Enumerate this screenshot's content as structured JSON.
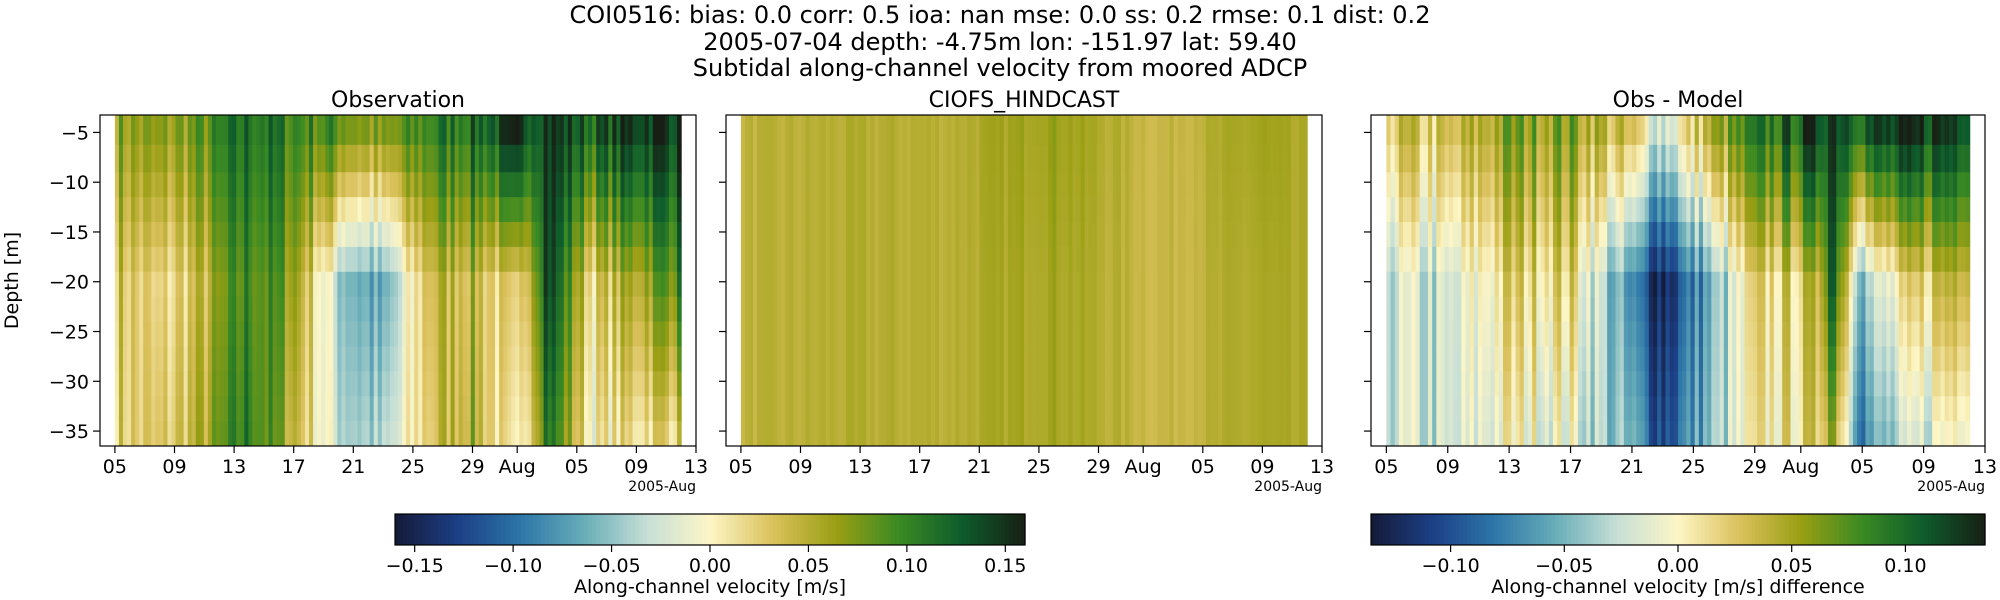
{
  "suptitle": {
    "line1": "COI0516: bias: 0.0  corr: 0.5  ioa: nan  mse: 0.0  ss: 0.2  rmse: 0.1  dist: 0.2",
    "line2": "2005-07-04 depth: -4.75m lon: -151.97 lat: 59.40",
    "line3": "Subtidal along-channel velocity from moored ADCP"
  },
  "colors": {
    "colormap_velocity": [
      "#141a36",
      "#1c3f86",
      "#2d76a8",
      "#68adb8",
      "#c6dfd6",
      "#fdf6c6",
      "#dbc15c",
      "#9a9f14",
      "#3a8a23",
      "#0e5c2c",
      "#171f14"
    ],
    "colormap_difference": [
      "#141a36",
      "#1c3f86",
      "#2d76a8",
      "#68adb8",
      "#c6dfd6",
      "#fdf6c6",
      "#dbc15c",
      "#9a9f14",
      "#3a8a23",
      "#0e5c2c",
      "#171f14"
    ]
  },
  "chart_data": [
    {
      "type": "heatmap",
      "title": "Observation",
      "xlabel": "",
      "ylabel": "Depth [m]",
      "x_ticks": [
        "05",
        "09",
        "13",
        "17",
        "21",
        "25",
        "29",
        "Aug",
        "05",
        "09",
        "13"
      ],
      "x_offset_label": "2005-Aug",
      "x_range_days": [
        "2005-07-04",
        "2005-08-13"
      ],
      "data_x_range_days": [
        "2005-07-05",
        "2005-08-12"
      ],
      "y_ticks": [
        -5,
        -10,
        -15,
        -20,
        -25,
        -30,
        -35
      ],
      "ylim": [
        -36.5,
        -3.25
      ],
      "depth_levels": [
        -4.75,
        -7.75,
        -10.25,
        -12.75,
        -15.25,
        -17.75,
        -20.25,
        -22.75,
        -25.25,
        -27.75,
        -30.25,
        -32.75,
        -35.25
      ],
      "colorbar": "shared",
      "vmin": -0.16,
      "vmax": 0.16,
      "field_description": "Observed subtidal along-channel velocity; mostly positive (0.02-0.15 m/s) with a negative band (-0.08 to -0.04) around Jul 19-25 below 8 m and a strong positive near-surface layer late in the record",
      "columns": [
        {
          "date": "2005-07-05",
          "surface": 0.07,
          "mid": 0.04,
          "bottom": 0.03
        },
        {
          "date": "2005-07-08",
          "surface": 0.06,
          "mid": 0.01,
          "bottom": 0.02
        },
        {
          "date": "2005-07-11",
          "surface": 0.08,
          "mid": 0.04,
          "bottom": 0.05
        },
        {
          "date": "2005-07-14",
          "surface": 0.12,
          "mid": 0.1,
          "bottom": 0.11
        },
        {
          "date": "2005-07-17",
          "surface": 0.1,
          "mid": 0.07,
          "bottom": 0.05
        },
        {
          "date": "2005-07-20",
          "surface": 0.09,
          "mid": -0.04,
          "bottom": -0.03
        },
        {
          "date": "2005-07-23",
          "surface": 0.06,
          "mid": -0.08,
          "bottom": -0.05
        },
        {
          "date": "2005-07-26",
          "surface": 0.1,
          "mid": 0.04,
          "bottom": 0.03
        },
        {
          "date": "2005-07-29",
          "surface": 0.12,
          "mid": 0.05,
          "bottom": 0.06
        },
        {
          "date": "2005-08-01",
          "surface": 0.14,
          "mid": 0.0,
          "bottom": -0.02
        },
        {
          "date": "2005-08-03",
          "surface": 0.15,
          "mid": 0.15,
          "bottom": 0.12
        },
        {
          "date": "2005-08-06",
          "surface": 0.12,
          "mid": 0.02,
          "bottom": 0.0
        },
        {
          "date": "2005-08-09",
          "surface": 0.15,
          "mid": 0.06,
          "bottom": 0.02
        },
        {
          "date": "2005-08-12",
          "surface": 0.15,
          "mid": 0.1,
          "bottom": 0.03
        }
      ]
    },
    {
      "type": "heatmap",
      "title": "CIOFS_HINDCAST",
      "xlabel": "",
      "ylabel": "",
      "x_ticks": [
        "05",
        "09",
        "13",
        "17",
        "21",
        "25",
        "29",
        "Aug",
        "05",
        "09",
        "13"
      ],
      "x_offset_label": "2005-Aug",
      "x_range_days": [
        "2005-07-04",
        "2005-08-13"
      ],
      "data_x_range_days": [
        "2005-07-05",
        "2005-08-12"
      ],
      "y_ticks": [
        -5,
        -10,
        -15,
        -20,
        -25,
        -30,
        -35
      ],
      "ylim": [
        -36.5,
        -3.25
      ],
      "colorbar": "shared",
      "vmin": -0.16,
      "vmax": 0.16,
      "field_description": "Model along-channel velocity; nearly depth-uniform, weakly positive (about 0.03-0.07 m/s) with faint tidal striping",
      "columns": [
        {
          "date": "2005-07-05",
          "surface": 0.045,
          "mid": 0.045,
          "bottom": 0.045
        },
        {
          "date": "2005-07-12",
          "surface": 0.05,
          "mid": 0.05,
          "bottom": 0.05
        },
        {
          "date": "2005-07-19",
          "surface": 0.05,
          "mid": 0.05,
          "bottom": 0.05
        },
        {
          "date": "2005-07-26",
          "surface": 0.065,
          "mid": 0.06,
          "bottom": 0.06
        },
        {
          "date": "2005-08-02",
          "surface": 0.04,
          "mid": 0.04,
          "bottom": 0.04
        },
        {
          "date": "2005-08-09",
          "surface": 0.06,
          "mid": 0.055,
          "bottom": 0.055
        },
        {
          "date": "2005-08-12",
          "surface": 0.05,
          "mid": 0.05,
          "bottom": 0.05
        }
      ]
    },
    {
      "type": "heatmap",
      "title": "Obs - Model",
      "xlabel": "",
      "ylabel": "",
      "x_ticks": [
        "05",
        "09",
        "13",
        "17",
        "21",
        "25",
        "29",
        "Aug",
        "05",
        "09",
        "13"
      ],
      "x_offset_label": "2005-Aug",
      "x_range_days": [
        "2005-07-04",
        "2005-08-13"
      ],
      "data_x_range_days": [
        "2005-07-05",
        "2005-08-12"
      ],
      "y_ticks": [
        -5,
        -10,
        -15,
        -20,
        -25,
        -30,
        -35
      ],
      "ylim": [
        -36.5,
        -3.25
      ],
      "colorbar": "Along-channel velocity [m/s] difference",
      "vmin": -0.135,
      "vmax": 0.135,
      "field_description": "Observation minus model; negative (-0.12 to -0.03) through mid-July below 8 m, strongly positive near the surface in August",
      "columns": [
        {
          "date": "2005-07-05",
          "surface": 0.03,
          "mid": -0.02,
          "bottom": -0.02
        },
        {
          "date": "2005-07-09",
          "surface": 0.02,
          "mid": -0.03,
          "bottom": -0.03
        },
        {
          "date": "2005-07-13",
          "surface": 0.06,
          "mid": 0.02,
          "bottom": 0.0
        },
        {
          "date": "2005-07-17",
          "surface": 0.06,
          "mid": 0.02,
          "bottom": -0.01
        },
        {
          "date": "2005-07-21",
          "surface": 0.02,
          "mid": -0.08,
          "bottom": -0.06
        },
        {
          "date": "2005-07-23",
          "surface": -0.02,
          "mid": -0.12,
          "bottom": -0.1
        },
        {
          "date": "2005-07-26",
          "surface": 0.04,
          "mid": -0.06,
          "bottom": -0.05
        },
        {
          "date": "2005-07-29",
          "surface": 0.08,
          "mid": 0.01,
          "bottom": 0.0
        },
        {
          "date": "2005-08-02",
          "surface": 0.12,
          "mid": 0.03,
          "bottom": 0.02
        },
        {
          "date": "2005-08-03",
          "surface": 0.13,
          "mid": 0.12,
          "bottom": 0.07
        },
        {
          "date": "2005-08-05",
          "surface": 0.11,
          "mid": -0.04,
          "bottom": -0.07
        },
        {
          "date": "2005-08-09",
          "surface": 0.12,
          "mid": 0.02,
          "bottom": -0.02
        },
        {
          "date": "2005-08-12",
          "surface": 0.13,
          "mid": 0.06,
          "bottom": 0.02
        }
      ]
    }
  ],
  "colorbars": [
    {
      "label": "Along-channel velocity [m/s]",
      "vmin": -0.16,
      "vmax": 0.16,
      "ticks": [
        -0.15,
        -0.1,
        -0.05,
        0.0,
        0.05,
        0.1,
        0.15
      ],
      "tick_labels": [
        "−0.15",
        "−0.10",
        "−0.05",
        "0.00",
        "0.05",
        "0.10",
        "0.15"
      ]
    },
    {
      "label": "Along-channel velocity [m/s] difference",
      "vmin": -0.135,
      "vmax": 0.135,
      "ticks": [
        -0.1,
        -0.05,
        0.0,
        0.05,
        0.1
      ],
      "tick_labels": [
        "−0.10",
        "−0.05",
        "0.00",
        "0.05",
        "0.10"
      ]
    }
  ]
}
